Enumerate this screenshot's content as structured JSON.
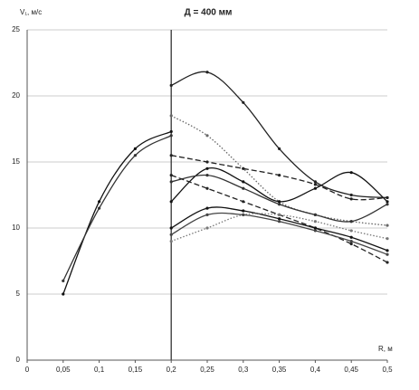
{
  "chart_data": {
    "type": "line",
    "title": "Д = 400 мм",
    "y_label": "V₁, м/с",
    "x_label": "R, м",
    "xlim": [
      0,
      0.5
    ],
    "ylim": [
      0,
      25
    ],
    "xticks": [
      0,
      {
        "value": 0.05,
        "label": "0,05"
      },
      {
        "value": 0.1,
        "label": "0,1"
      },
      {
        "value": 0.15,
        "label": "0,15"
      },
      {
        "value": 0.2,
        "label": "0,2"
      },
      {
        "value": 0.25,
        "label": "0,25"
      },
      {
        "value": 0.3,
        "label": "0,3"
      },
      {
        "value": 0.35,
        "label": "0,35"
      },
      {
        "value": 0.4,
        "label": "0,4"
      },
      {
        "value": 0.45,
        "label": "0,45"
      },
      {
        "value": 0.5,
        "label": "0,5"
      }
    ],
    "yticks": [
      0,
      5,
      10,
      15,
      20,
      25
    ],
    "grid": true,
    "series": [
      {
        "color": "#111111",
        "dash": "solid",
        "x": [
          0.05,
          0.1,
          0.15,
          0.2
        ],
        "values": [
          5,
          12,
          16,
          17.3
        ]
      },
      {
        "color": "#333333",
        "dash": "solid",
        "x": [
          0.05,
          0.1,
          0.15,
          0.2
        ],
        "values": [
          6,
          11.5,
          15.5,
          17
        ]
      },
      {
        "color": "#222222",
        "dash": "solid",
        "x": [
          0.2,
          0.25,
          0.3,
          0.35,
          0.4,
          0.45,
          0.5
        ],
        "values": [
          20.8,
          21.8,
          19.5,
          16,
          13.5,
          12.5,
          12.3
        ]
      },
      {
        "color": "#666666",
        "dash": "dotted",
        "x": [
          0.2,
          0.25,
          0.3,
          0.35,
          0.4,
          0.45,
          0.5
        ],
        "values": [
          18.5,
          17,
          14.5,
          12,
          11,
          10.5,
          10.2
        ]
      },
      {
        "color": "#222222",
        "dash": "dashed",
        "x": [
          0.2,
          0.25,
          0.3,
          0.35,
          0.4,
          0.45,
          0.5
        ],
        "values": [
          15.5,
          15,
          14.5,
          14,
          13.3,
          12.2,
          12.3
        ]
      },
      {
        "color": "#111111",
        "dash": "solid",
        "x": [
          0.2,
          0.25,
          0.3,
          0.35,
          0.4,
          0.45,
          0.5
        ],
        "values": [
          12,
          14.5,
          13.5,
          12,
          13,
          14.2,
          12
        ]
      },
      {
        "color": "#333333",
        "dash": "solid",
        "x": [
          0.2,
          0.25,
          0.3,
          0.35,
          0.4,
          0.45,
          0.5
        ],
        "values": [
          13.5,
          14,
          13,
          11.8,
          11,
          10.5,
          11.8
        ]
      },
      {
        "color": "#222222",
        "dash": "dashed",
        "x": [
          0.2,
          0.25,
          0.3,
          0.35,
          0.4,
          0.45,
          0.5
        ],
        "values": [
          14,
          13,
          12,
          11,
          10,
          8.8,
          7.4
        ]
      },
      {
        "color": "#111111",
        "dash": "solid",
        "x": [
          0.2,
          0.25,
          0.3,
          0.35,
          0.4,
          0.45,
          0.5
        ],
        "values": [
          10,
          11.5,
          11.3,
          10.7,
          10,
          9.3,
          8.3
        ]
      },
      {
        "color": "#777777",
        "dash": "dotted",
        "x": [
          0.2,
          0.25,
          0.3,
          0.35,
          0.4,
          0.45,
          0.5
        ],
        "values": [
          9,
          10,
          11,
          11,
          10.5,
          9.8,
          9.2
        ]
      },
      {
        "color": "#444444",
        "dash": "solid",
        "x": [
          0.2,
          0.25,
          0.3,
          0.35,
          0.4,
          0.45,
          0.5
        ],
        "values": [
          9.5,
          11,
          11,
          10.5,
          9.8,
          9,
          8
        ]
      }
    ]
  }
}
